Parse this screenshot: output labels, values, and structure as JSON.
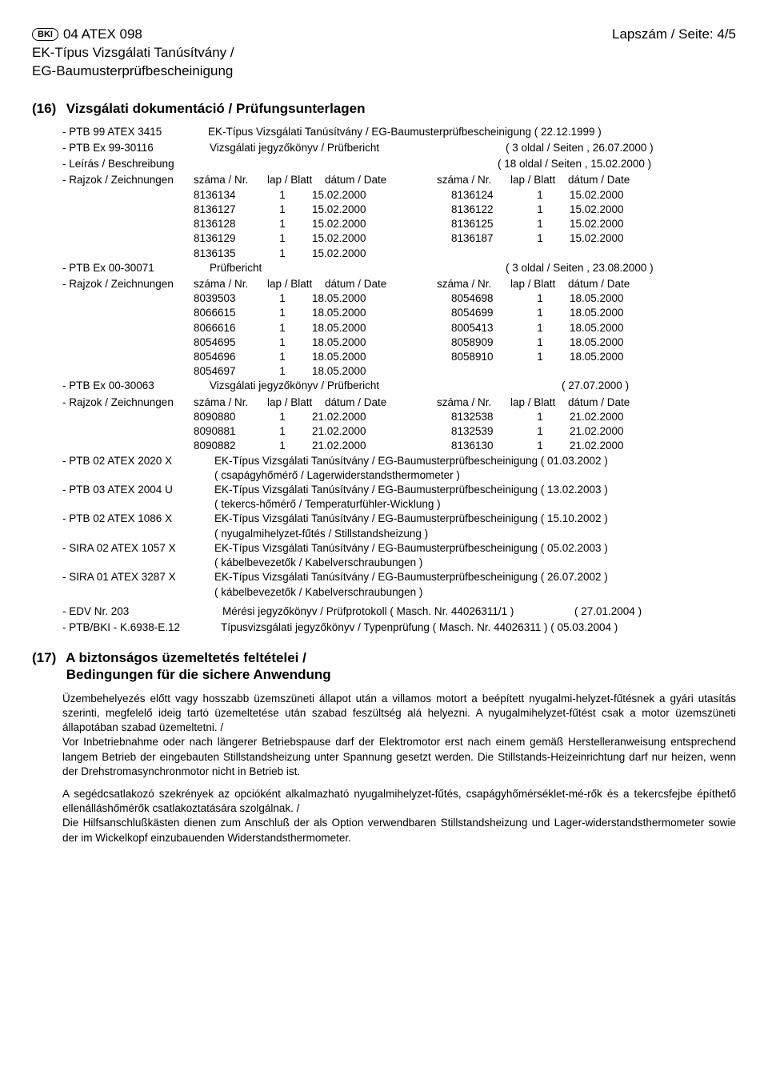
{
  "header": {
    "bki": "BKI",
    "doc_ref": "04 ATEX 098",
    "page_label": "Lapszám / Seite: 4/5",
    "subtitle1": "EK-Típus Vizsgálati Tanúsítvány /",
    "subtitle2": "EG-Baumusterprüfbescheinigung"
  },
  "sec16": {
    "num": "(16)",
    "title": "Vizsgálati dokumentáció / Prüfungsunterlagen",
    "ptb99": {
      "label": "- PTB 99 ATEX 3415",
      "text": "EK-Típus Vizsgálati Tanúsítvány / EG-Baumusterprüfbescheinigung ( 22.12.1999 )"
    },
    "ptbex99": {
      "label": "- PTB Ex 99-30116",
      "mid": "Vizsgálati jegyzőkönyv / Prüfbericht",
      "right": "(  3 oldal / Seiten , 26.07.2000 )"
    },
    "leiras": {
      "label": "- Leírás / Beschreibung",
      "right": "( 18 oldal / Seiten , 15.02.2000 )"
    },
    "rajz_hdr": {
      "label": "- Rajzok / Zeichnungen",
      "h1": "száma / Nr.",
      "h2": "lap / Blatt",
      "h3": "dátum / Date",
      "h4": "száma / Nr.",
      "h5": "lap / Blatt",
      "h6": "dátum / Date"
    },
    "draw1": [
      [
        "8136134",
        "1",
        "15.02.2000",
        "8136124",
        "1",
        "15.02.2000"
      ],
      [
        "8136127",
        "1",
        "15.02.2000",
        "8136122",
        "1",
        "15.02.2000"
      ],
      [
        "8136128",
        "1",
        "15.02.2000",
        "8136125",
        "1",
        "15.02.2000"
      ],
      [
        "8136129",
        "1",
        "15.02.2000",
        "8136187",
        "1",
        "15.02.2000"
      ],
      [
        "8136135",
        "1",
        "15.02.2000",
        "",
        "",
        ""
      ]
    ],
    "ptbex00a": {
      "label": "- PTB Ex 00-30071",
      "mid": "Prüfbericht",
      "right": "(  3 oldal / Seiten , 23.08.2000 )"
    },
    "draw2": [
      [
        "8039503",
        "1",
        "18.05.2000",
        "8054698",
        "1",
        "18.05.2000"
      ],
      [
        "8066615",
        "1",
        "18.05.2000",
        "8054699",
        "1",
        "18.05.2000"
      ],
      [
        "8066616",
        "1",
        "18.05.2000",
        "8005413",
        "1",
        "18.05.2000"
      ],
      [
        "8054695",
        "1",
        "18.05.2000",
        "8058909",
        "1",
        "18.05.2000"
      ],
      [
        "8054696",
        "1",
        "18.05.2000",
        "8058910",
        "1",
        "18.05.2000"
      ],
      [
        "8054697",
        "1",
        "18.05.2000",
        "",
        "",
        ""
      ]
    ],
    "ptbex00b": {
      "label": "- PTB Ex 00-30063",
      "mid": "Vizsgálati jegyzőkönyv / Prüfbericht",
      "right": "( 27.07.2000 )"
    },
    "draw3": [
      [
        "8090880",
        "1",
        "21.02.2000",
        "8132538",
        "1",
        "21.02.2000"
      ],
      [
        "8090881",
        "1",
        "21.02.2000",
        "8132539",
        "1",
        "21.02.2000"
      ],
      [
        "8090882",
        "1",
        "21.02.2000",
        "8136130",
        "1",
        "21.02.2000"
      ]
    ],
    "certs": [
      {
        "label": "- PTB 02 ATEX 2020 X",
        "l1": "EK-Típus Vizsgálati Tanúsítvány / EG-Baumusterprüfbescheinigung ( 01.03.2002 )",
        "l2": "( csapágyhőmérő / Lagerwiderstandsthermometer )"
      },
      {
        "label": "- PTB 03 ATEX 2004 U",
        "l1": "EK-Típus Vizsgálati Tanúsítvány / EG-Baumusterprüfbescheinigung ( 13.02.2003 )",
        "l2": "( tekercs-hőmérő / Temperaturfühler-Wicklung )"
      },
      {
        "label": "- PTB 02 ATEX 1086 X",
        "l1": "EK-Típus Vizsgálati Tanúsítvány / EG-Baumusterprüfbescheinigung ( 15.10.2002 )",
        "l2": "( nyugalmihelyzet-fűtés / Stillstandsheizung )"
      },
      {
        "label": "- SIRA 02 ATEX 1057 X",
        "l1": "EK-Típus Vizsgálati Tanúsítvány / EG-Baumusterprüfbescheinigung ( 05.02.2003 )",
        "l2": "( kábelbevezetők / Kabelverschraubungen )"
      },
      {
        "label": "- SIRA 01 ATEX 3287 X",
        "l1": "EK-Típus Vizsgálati Tanúsítvány / EG-Baumusterprüfbescheinigung ( 26.07.2002 )",
        "l2": "( kábelbevezetők / Kabelverschraubungen )"
      }
    ],
    "edv": {
      "label": "- EDV Nr. 203",
      "mid": "Mérési jegyzőkönyv / Prüfprotokoll  ( Masch. Nr. 44026311/1 )",
      "right": "( 27.01.2004 )"
    },
    "ptbbki": {
      "label": "- PTB/BKI - K.6938-E.12",
      "text": "Típusvizsgálati  jegyzőkönyv / Typenprüfung ( Masch. Nr. 44026311 ) ( 05.03.2004 )"
    }
  },
  "sec17": {
    "num": "(17)",
    "title1": "A biztonságos üzemeltetés feltételei /",
    "title2": "Bedingungen für die sichere Anwendung",
    "p1": "Üzembehelyezés előtt vagy hosszabb üzemszüneti állapot után a villamos motort a beépített nyugalmi-helyzet-fűtésnek a gyári utasítás szerinti, megfelelő ideig tartó üzemeltetése után szabad feszültség alá helyezni. A nyugalmihelyzet-fűtést csak a motor üzemszüneti állapotában szabad üzemeltetni. /",
    "p2": "Vor Inbetriebnahme oder nach längerer Betriebspause darf der Elektromotor erst nach einem gemäß Herstelleranweisung entsprechend langem Betrieb der eingebauten Stillstandsheizung unter Spannung gesetzt werden. Die Stillstands-Heizeinrichtung darf nur heizen, wenn der Drehstromasynchronmotor nicht in Betrieb ist.",
    "p3": "A segédcsatlakozó szekrények az opcióként alkalmazható nyugalmihelyzet-fűtés, csapágyhőmérséklet-mé-rők és a tekercsfejbe építhető ellenálláshőmérők csatlakoztatására szolgálnak. /",
    "p4": "Die Hilfsanschlußkästen dienen zum Anschluß der als Option verwendbaren Stillstandsheizung und Lager-widerstandsthermometer sowie der im Wickelkopf einzubauenden Widerstandsthermometer."
  }
}
